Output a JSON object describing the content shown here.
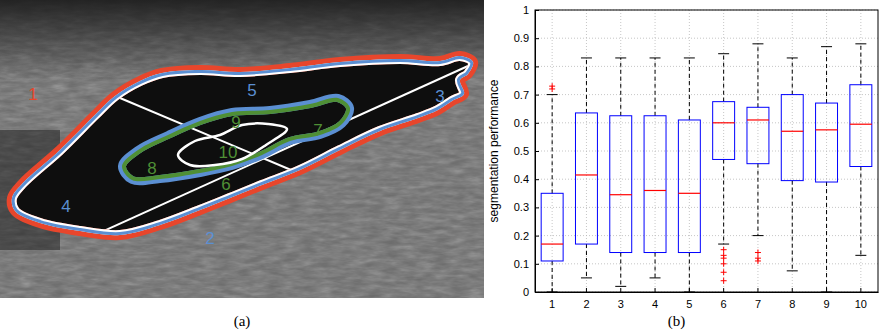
{
  "panel_a": {
    "caption": "(a)",
    "regions": [
      {
        "text": "1",
        "color": "#e8462c"
      },
      {
        "text": "2",
        "color": "#5b8fd2"
      },
      {
        "text": "3",
        "color": "#5b8fd2"
      },
      {
        "text": "4",
        "color": "#5b8fd2"
      },
      {
        "text": "5",
        "color": "#5b8fd2"
      },
      {
        "text": "6",
        "color": "#4f8f35"
      },
      {
        "text": "7",
        "color": "#4f8f35"
      },
      {
        "text": "8",
        "color": "#4f8f35"
      },
      {
        "text": "9",
        "color": "#4f8f35"
      },
      {
        "text": "10",
        "color": "#4f8f35"
      }
    ]
  },
  "chart_data": {
    "type": "box",
    "caption": "(b)",
    "y_label": "segmentation performance",
    "categories": [
      "1",
      "2",
      "3",
      "4",
      "5",
      "6",
      "7",
      "8",
      "9",
      "10"
    ],
    "series": [
      {
        "color": "#0000ff",
        "marker": "plus",
        "line_style": "dashed",
        "low": [
          0.0,
          0.05,
          0.02,
          0.05,
          0.0,
          0.17,
          0.2,
          0.075,
          0.0,
          0.13
        ],
        "q1": [
          0.11,
          0.17,
          0.14,
          0.14,
          0.14,
          0.47,
          0.455,
          0.395,
          0.39,
          0.445
        ],
        "median": [
          0.17,
          0.415,
          0.345,
          0.36,
          0.35,
          0.6,
          0.61,
          0.57,
          0.575,
          0.595
        ],
        "q3": [
          0.35,
          0.635,
          0.625,
          0.625,
          0.61,
          0.675,
          0.655,
          0.7,
          0.67,
          0.735
        ],
        "high": [
          0.7,
          0.83,
          0.83,
          0.83,
          0.83,
          0.845,
          0.88,
          0.83,
          0.87,
          0.88
        ],
        "outliers": [
          [
            0.72,
            0.73
          ],
          [],
          [],
          [],
          [],
          [
            0.15,
            0.13,
            0.12,
            0.1,
            0.07,
            0.04
          ],
          [
            0.14,
            0.12,
            0.11
          ],
          [],
          [],
          []
        ]
      }
    ],
    "ylim": [
      0,
      1
    ],
    "yticks": [
      0,
      0.1,
      0.2,
      0.3,
      0.4,
      0.5,
      0.6,
      0.7,
      0.8,
      0.9,
      1
    ],
    "grid": true
  }
}
